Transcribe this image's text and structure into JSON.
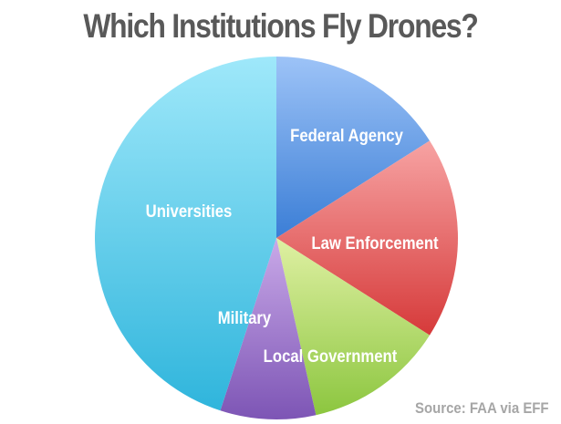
{
  "title": "Which Institutions Fly Drones?",
  "source": "Source: FAA via EFF",
  "chart_data": {
    "type": "pie",
    "title": "Which Institutions Fly Drones?",
    "start_angle_deg": 0,
    "direction": "clockwise",
    "slices": [
      {
        "label": "Federal Agency",
        "value": 16,
        "color_light": "#9dc3f7",
        "color_dark": "#3b7ed6"
      },
      {
        "label": "Law Enforcement",
        "value": 18,
        "color_light": "#f7a3a3",
        "color_dark": "#d63a3a"
      },
      {
        "label": "Local Government",
        "value": 12.5,
        "color_light": "#dff0a3",
        "color_dark": "#8cc63f"
      },
      {
        "label": "Military",
        "value": 8.5,
        "color_light": "#c9a9e8",
        "color_dark": "#7d55b5"
      },
      {
        "label": "Universities",
        "value": 45,
        "color_light": "#9fe8fa",
        "color_dark": "#2fb5dc"
      }
    ]
  }
}
